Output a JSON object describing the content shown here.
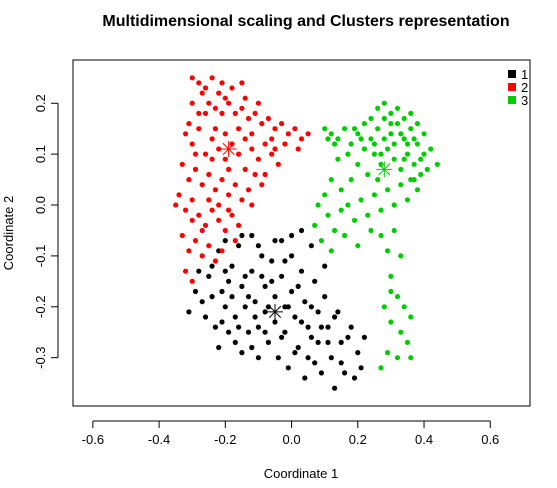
{
  "chart_data": {
    "type": "scatter",
    "title": "Multidimensional scaling and Clusters representation",
    "xlabel": "Coordinate 1",
    "ylabel": "Coordinate 2",
    "xlim": [
      -0.66,
      0.72
    ],
    "ylim": [
      -0.395,
      0.285
    ],
    "x_ticks": [
      -0.6,
      -0.4,
      -0.2,
      0.0,
      0.2,
      0.4,
      0.6
    ],
    "y_ticks": [
      -0.3,
      -0.2,
      -0.1,
      0.0,
      0.1,
      0.2
    ],
    "x_tick_labels": [
      "-0.6",
      "-0.4",
      "-0.2",
      "0.0",
      "0.2",
      "0.4",
      "0.6"
    ],
    "y_tick_labels": [
      "-0.3",
      "-0.2",
      "-0.1",
      "0.0",
      "0.1",
      "0.2"
    ],
    "grid": false,
    "legend": {
      "position": "top-right",
      "entries": [
        {
          "label": "1",
          "color": "#000000"
        },
        {
          "label": "2",
          "color": "#ff0000"
        },
        {
          "label": "3",
          "color": "#00cd00"
        }
      ]
    },
    "series": [
      {
        "name": "1",
        "color": "#000000",
        "centroid": [
          -0.05,
          -0.21
        ],
        "points": [
          [
            -0.31,
            -0.21
          ],
          [
            -0.29,
            -0.17
          ],
          [
            -0.27,
            -0.19
          ],
          [
            -0.25,
            -0.14
          ],
          [
            -0.24,
            -0.12
          ],
          [
            -0.23,
            -0.24
          ],
          [
            -0.22,
            -0.09
          ],
          [
            -0.22,
            -0.28
          ],
          [
            -0.21,
            -0.17
          ],
          [
            -0.2,
            -0.2
          ],
          [
            -0.2,
            -0.07
          ],
          [
            -0.19,
            -0.25
          ],
          [
            -0.18,
            -0.12
          ],
          [
            -0.17,
            -0.22
          ],
          [
            -0.16,
            -0.08
          ],
          [
            -0.15,
            -0.16
          ],
          [
            -0.15,
            -0.29
          ],
          [
            -0.14,
            -0.2
          ],
          [
            -0.13,
            -0.25
          ],
          [
            -0.12,
            -0.06
          ],
          [
            -0.12,
            -0.13
          ],
          [
            -0.11,
            -0.19
          ],
          [
            -0.1,
            -0.24
          ],
          [
            -0.1,
            -0.3
          ],
          [
            -0.09,
            -0.1
          ],
          [
            -0.08,
            -0.16
          ],
          [
            -0.08,
            -0.21
          ],
          [
            -0.07,
            -0.27
          ],
          [
            -0.06,
            -0.11
          ],
          [
            -0.05,
            -0.18
          ],
          [
            -0.05,
            -0.23
          ],
          [
            -0.04,
            -0.3
          ],
          [
            -0.03,
            -0.07
          ],
          [
            -0.03,
            -0.14
          ],
          [
            -0.02,
            -0.2
          ],
          [
            -0.02,
            -0.25
          ],
          [
            -0.01,
            -0.32
          ],
          [
            0.0,
            -0.1
          ],
          [
            0.0,
            -0.17
          ],
          [
            0.01,
            -0.22
          ],
          [
            0.02,
            -0.28
          ],
          [
            0.03,
            -0.05
          ],
          [
            0.03,
            -0.13
          ],
          [
            0.04,
            -0.19
          ],
          [
            0.05,
            -0.24
          ],
          [
            0.05,
            -0.3
          ],
          [
            0.06,
            -0.08
          ],
          [
            0.07,
            -0.15
          ],
          [
            0.08,
            -0.21
          ],
          [
            0.08,
            -0.27
          ],
          [
            0.09,
            -0.33
          ],
          [
            0.1,
            -0.18
          ],
          [
            0.11,
            -0.24
          ],
          [
            0.12,
            -0.3
          ],
          [
            0.13,
            -0.36
          ],
          [
            0.14,
            -0.21
          ],
          [
            0.15,
            -0.27
          ],
          [
            0.16,
            -0.33
          ],
          [
            0.18,
            -0.24
          ],
          [
            0.2,
            -0.29
          ],
          [
            0.22,
            -0.26
          ],
          [
            -0.26,
            -0.22
          ],
          [
            -0.18,
            -0.18
          ],
          [
            -0.14,
            -0.14
          ],
          [
            -0.1,
            -0.08
          ],
          [
            -0.06,
            -0.15
          ],
          [
            -0.02,
            -0.11
          ],
          [
            0.02,
            -0.16
          ],
          [
            0.06,
            -0.2
          ],
          [
            0.1,
            -0.12
          ],
          [
            -0.15,
            -0.06
          ],
          [
            -0.19,
            -0.15
          ],
          [
            -0.11,
            -0.22
          ],
          [
            -0.07,
            -0.2
          ],
          [
            -0.03,
            -0.26
          ],
          [
            0.01,
            -0.29
          ],
          [
            0.04,
            -0.34
          ],
          [
            0.07,
            -0.31
          ],
          [
            0.11,
            -0.27
          ],
          [
            0.13,
            -0.22
          ],
          [
            -0.28,
            -0.13
          ],
          [
            -0.24,
            -0.18
          ],
          [
            -0.21,
            -0.23
          ],
          [
            -0.17,
            -0.27
          ],
          [
            -0.13,
            -0.18
          ],
          [
            -0.09,
            -0.14
          ],
          [
            -0.05,
            -0.07
          ],
          [
            -0.01,
            -0.2
          ],
          [
            0.03,
            -0.23
          ],
          [
            0.06,
            -0.26
          ],
          [
            0.09,
            -0.24
          ],
          [
            0.15,
            -0.31
          ],
          [
            0.17,
            -0.26
          ],
          [
            0.19,
            -0.34
          ],
          [
            0.21,
            -0.32
          ],
          [
            -0.2,
            -0.13
          ],
          [
            -0.16,
            -0.24
          ],
          [
            -0.12,
            -0.28
          ],
          [
            -0.08,
            -0.25
          ],
          [
            0.0,
            -0.06
          ]
        ]
      },
      {
        "name": "2",
        "color": "#ff0000",
        "centroid": [
          -0.19,
          0.11
        ],
        "points": [
          [
            -0.3,
            0.25
          ],
          [
            -0.28,
            0.24
          ],
          [
            -0.26,
            0.23
          ],
          [
            -0.24,
            0.25
          ],
          [
            -0.22,
            0.22
          ],
          [
            -0.2,
            0.21
          ],
          [
            -0.3,
            0.2
          ],
          [
            -0.28,
            0.18
          ],
          [
            -0.25,
            0.2
          ],
          [
            -0.23,
            0.19
          ],
          [
            -0.21,
            0.18
          ],
          [
            -0.19,
            0.2
          ],
          [
            -0.17,
            0.18
          ],
          [
            -0.15,
            0.19
          ],
          [
            -0.13,
            0.17
          ],
          [
            -0.11,
            0.18
          ],
          [
            -0.09,
            0.16
          ],
          [
            -0.07,
            0.17
          ],
          [
            -0.05,
            0.15
          ],
          [
            -0.03,
            0.16
          ],
          [
            -0.01,
            0.14
          ],
          [
            0.01,
            0.15
          ],
          [
            0.03,
            0.13
          ],
          [
            0.05,
            0.14
          ],
          [
            -0.32,
            0.14
          ],
          [
            -0.3,
            0.12
          ],
          [
            -0.28,
            0.15
          ],
          [
            -0.26,
            0.1
          ],
          [
            -0.24,
            0.13
          ],
          [
            -0.22,
            0.11
          ],
          [
            -0.2,
            0.09
          ],
          [
            -0.18,
            0.12
          ],
          [
            -0.16,
            0.1
          ],
          [
            -0.14,
            0.13
          ],
          [
            -0.12,
            0.11
          ],
          [
            -0.1,
            0.09
          ],
          [
            -0.08,
            0.12
          ],
          [
            -0.06,
            0.1
          ],
          [
            -0.04,
            0.08
          ],
          [
            -0.33,
            0.08
          ],
          [
            -0.31,
            0.05
          ],
          [
            -0.29,
            0.07
          ],
          [
            -0.27,
            0.04
          ],
          [
            -0.25,
            0.06
          ],
          [
            -0.23,
            0.03
          ],
          [
            -0.21,
            0.05
          ],
          [
            -0.19,
            0.02
          ],
          [
            -0.17,
            0.04
          ],
          [
            -0.15,
            0.01
          ],
          [
            -0.13,
            0.03
          ],
          [
            -0.11,
            0.06
          ],
          [
            -0.09,
            0.04
          ],
          [
            -0.34,
            0.02
          ],
          [
            -0.32,
            -0.01
          ],
          [
            -0.3,
            0.01
          ],
          [
            -0.28,
            -0.02
          ],
          [
            -0.26,
            -0.04
          ],
          [
            -0.24,
            -0.01
          ],
          [
            -0.22,
            -0.03
          ],
          [
            -0.2,
            -0.05
          ],
          [
            -0.18,
            -0.02
          ],
          [
            -0.16,
            -0.04
          ],
          [
            -0.33,
            -0.06
          ],
          [
            -0.31,
            -0.09
          ],
          [
            -0.29,
            -0.07
          ],
          [
            -0.27,
            -0.1
          ],
          [
            -0.25,
            -0.08
          ],
          [
            -0.23,
            -0.11
          ],
          [
            -0.21,
            -0.09
          ],
          [
            -0.32,
            -0.13
          ],
          [
            -0.3,
            -0.15
          ],
          [
            -0.26,
            0.18
          ],
          [
            -0.18,
            0.23
          ],
          [
            -0.14,
            0.21
          ],
          [
            -0.1,
            0.2
          ],
          [
            -0.06,
            0.13
          ],
          [
            -0.02,
            0.12
          ],
          [
            0.02,
            0.11
          ],
          [
            -0.27,
            0.22
          ],
          [
            -0.21,
            0.24
          ],
          [
            -0.16,
            0.15
          ],
          [
            -0.12,
            0.14
          ],
          [
            -0.08,
            0.06
          ],
          [
            -0.14,
            0.07
          ],
          [
            -0.19,
            0.07
          ],
          [
            -0.24,
            0.09
          ],
          [
            -0.29,
            0.1
          ],
          [
            -0.35,
            0.0
          ],
          [
            -0.22,
            0.0
          ],
          [
            -0.17,
            -0.07
          ],
          [
            -0.27,
            -0.05
          ],
          [
            -0.31,
            0.16
          ],
          [
            -0.23,
            0.15
          ],
          [
            -0.2,
            0.14
          ],
          [
            -0.05,
            0.11
          ],
          [
            -0.15,
            0.24
          ],
          [
            -0.25,
            0.01
          ],
          [
            -0.3,
            -0.03
          ],
          [
            -0.19,
            -0.01
          ],
          [
            -0.12,
            0.0
          ]
        ]
      },
      {
        "name": "3",
        "color": "#00cd00",
        "centroid": [
          0.28,
          0.07
        ],
        "points": [
          [
            0.1,
            0.15
          ],
          [
            0.12,
            0.14
          ],
          [
            0.14,
            0.13
          ],
          [
            0.16,
            0.15
          ],
          [
            0.18,
            0.12
          ],
          [
            0.2,
            0.14
          ],
          [
            0.22,
            0.16
          ],
          [
            0.24,
            0.13
          ],
          [
            0.26,
            0.15
          ],
          [
            0.28,
            0.17
          ],
          [
            0.3,
            0.14
          ],
          [
            0.32,
            0.16
          ],
          [
            0.34,
            0.13
          ],
          [
            0.36,
            0.15
          ],
          [
            0.38,
            0.12
          ],
          [
            0.4,
            0.14
          ],
          [
            0.42,
            0.11
          ],
          [
            0.44,
            0.08
          ],
          [
            0.26,
            0.19
          ],
          [
            0.28,
            0.2
          ],
          [
            0.3,
            0.18
          ],
          [
            0.32,
            0.19
          ],
          [
            0.34,
            0.17
          ],
          [
            0.36,
            0.18
          ],
          [
            0.38,
            0.16
          ],
          [
            0.4,
            0.1
          ],
          [
            0.25,
            0.1
          ],
          [
            0.27,
            0.08
          ],
          [
            0.29,
            0.11
          ],
          [
            0.31,
            0.09
          ],
          [
            0.33,
            0.07
          ],
          [
            0.35,
            0.1
          ],
          [
            0.37,
            0.08
          ],
          [
            0.39,
            0.06
          ],
          [
            0.23,
            0.06
          ],
          [
            0.2,
            0.08
          ],
          [
            0.17,
            0.1
          ],
          [
            0.14,
            0.09
          ],
          [
            0.12,
            0.05
          ],
          [
            0.1,
            0.02
          ],
          [
            0.08,
            0.0
          ],
          [
            0.07,
            -0.04
          ],
          [
            0.09,
            -0.07
          ],
          [
            0.11,
            -0.02
          ],
          [
            0.13,
            -0.05
          ],
          [
            0.15,
            0.03
          ],
          [
            0.17,
            0.0
          ],
          [
            0.19,
            -0.03
          ],
          [
            0.21,
            0.01
          ],
          [
            0.23,
            -0.02
          ],
          [
            0.25,
            0.02
          ],
          [
            0.27,
            -0.01
          ],
          [
            0.29,
            0.03
          ],
          [
            0.31,
            0.0
          ],
          [
            0.33,
            0.04
          ],
          [
            0.35,
            0.01
          ],
          [
            0.37,
            0.05
          ],
          [
            0.27,
            -0.06
          ],
          [
            0.29,
            -0.09
          ],
          [
            0.31,
            -0.05
          ],
          [
            0.33,
            -0.1
          ],
          [
            0.3,
            -0.14
          ],
          [
            0.32,
            -0.18
          ],
          [
            0.28,
            -0.2
          ],
          [
            0.3,
            -0.23
          ],
          [
            0.33,
            -0.25
          ],
          [
            0.35,
            -0.27
          ],
          [
            0.36,
            -0.3
          ],
          [
            0.32,
            -0.3
          ],
          [
            0.29,
            -0.29
          ],
          [
            0.27,
            -0.32
          ],
          [
            0.36,
            -0.22
          ],
          [
            0.34,
            -0.2
          ],
          [
            0.24,
            0.17
          ],
          [
            0.33,
            0.14
          ],
          [
            0.37,
            0.13
          ],
          [
            0.31,
            0.12
          ],
          [
            0.35,
            0.12
          ],
          [
            0.39,
            0.09
          ],
          [
            0.41,
            0.07
          ],
          [
            0.22,
            0.11
          ],
          [
            0.18,
            0.05
          ],
          [
            0.15,
            -0.01
          ],
          [
            0.12,
            -0.09
          ],
          [
            0.16,
            -0.06
          ],
          [
            0.2,
            -0.08
          ],
          [
            0.24,
            -0.05
          ],
          [
            0.26,
            0.05
          ],
          [
            0.28,
            0.13
          ],
          [
            0.3,
            0.16
          ],
          [
            0.34,
            0.09
          ],
          [
            0.36,
            0.05
          ],
          [
            0.38,
            0.03
          ],
          [
            0.13,
            0.12
          ],
          [
            0.11,
            0.13
          ],
          [
            0.19,
            0.15
          ],
          [
            0.21,
            0.13
          ],
          [
            0.25,
            0.12
          ],
          [
            0.27,
            0.1
          ],
          [
            0.3,
            -0.17
          ]
        ]
      }
    ]
  }
}
